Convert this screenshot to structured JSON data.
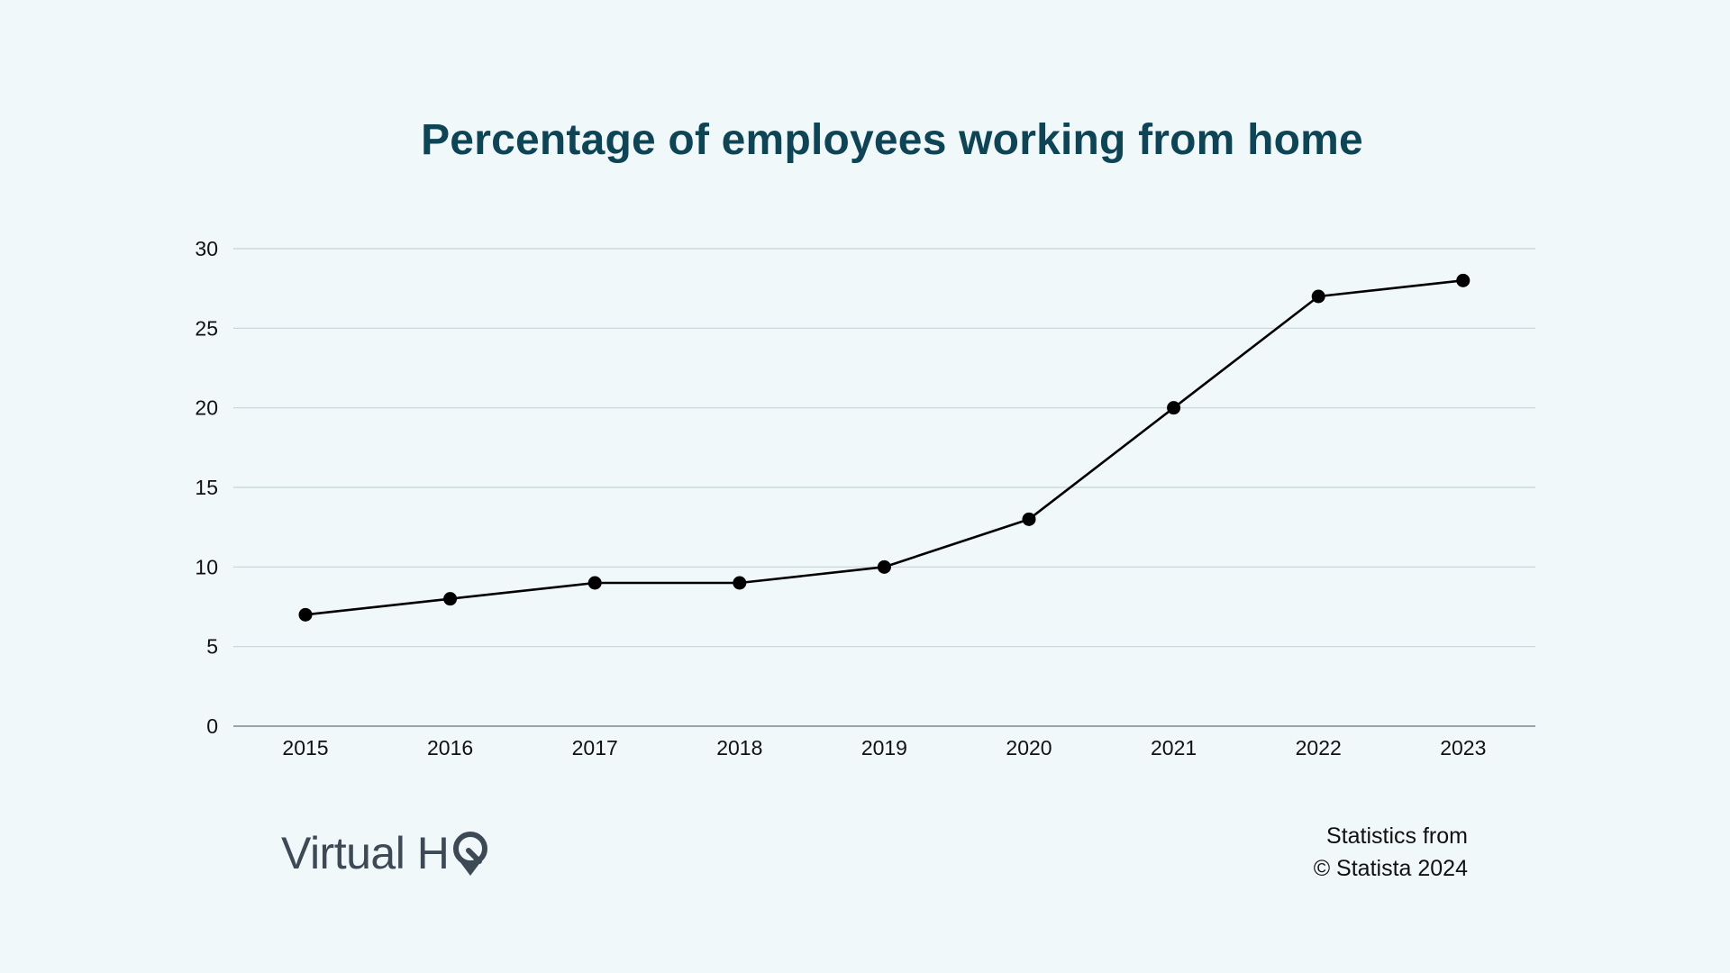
{
  "title": "Percentage of employees working from home",
  "logo": {
    "text": "Virtual H",
    "mark_letter": "Q",
    "color": "#3d4a55"
  },
  "credit": {
    "line1": "Statistics from",
    "line2": "© Statista 2024"
  },
  "colors": {
    "background": "#f0f8fa",
    "title": "#0d4556",
    "line": "#000000",
    "grid": "#c7d3d8",
    "axis": "#7a8a92"
  },
  "chart_data": {
    "type": "line",
    "categories": [
      "2015",
      "2016",
      "2017",
      "2018",
      "2019",
      "2020",
      "2021",
      "2022",
      "2023"
    ],
    "values": [
      7,
      8,
      9,
      9,
      10,
      13,
      20,
      27,
      28
    ],
    "ylim": [
      0,
      30
    ],
    "yticks": [
      0,
      5,
      10,
      15,
      20,
      25,
      30
    ],
    "xlabel": "",
    "ylabel": "",
    "grid": true,
    "legend": "none"
  }
}
